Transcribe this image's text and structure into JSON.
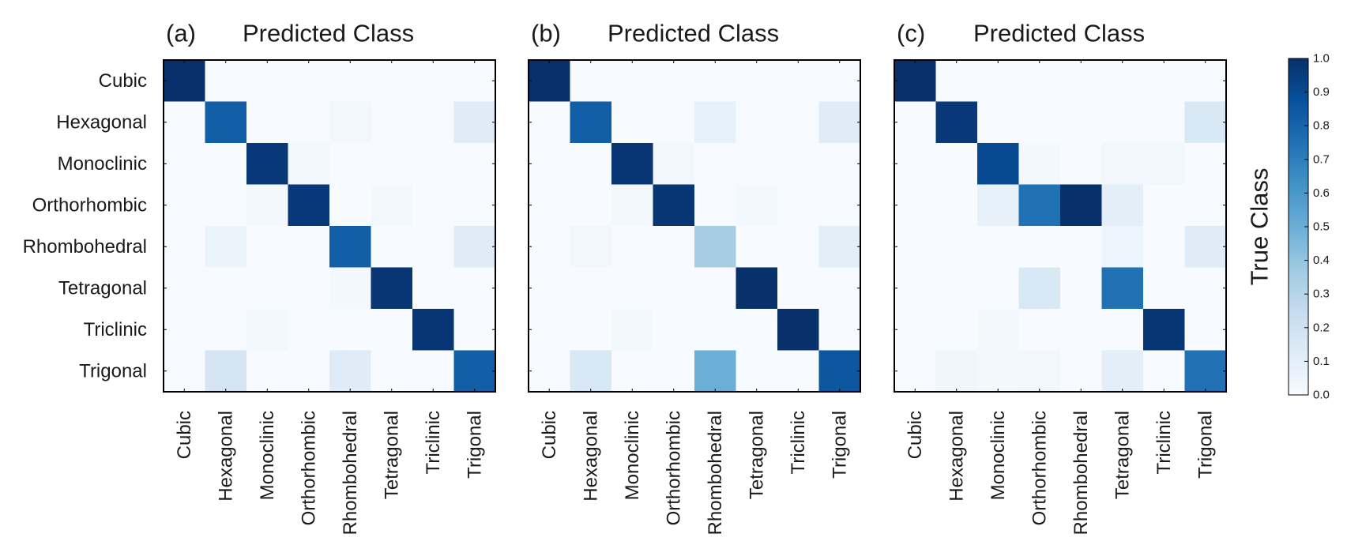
{
  "chart_data": [
    {
      "type": "heatmap",
      "panel_label": "(a)",
      "title": "Predicted Class",
      "ylabel": "",
      "rows": [
        "Cubic",
        "Hexagonal",
        "Monoclinic",
        "Orthorhombic",
        "Rhombohedral",
        "Tetragonal",
        "Triclinic",
        "Trigonal"
      ],
      "columns": [
        "Cubic",
        "Hexagonal",
        "Monoclinic",
        "Orthorhombic",
        "Rhombohedral",
        "Tetragonal",
        "Triclinic",
        "Trigonal"
      ],
      "values": [
        [
          1.0,
          0.0,
          0.0,
          0.0,
          0.0,
          0.0,
          0.0,
          0.0
        ],
        [
          0.0,
          0.82,
          0.0,
          0.0,
          0.03,
          0.0,
          0.0,
          0.12
        ],
        [
          0.0,
          0.0,
          0.97,
          0.03,
          0.0,
          0.0,
          0.0,
          0.0
        ],
        [
          0.0,
          0.0,
          0.02,
          0.97,
          0.0,
          0.02,
          0.0,
          0.0
        ],
        [
          0.0,
          0.06,
          0.0,
          0.0,
          0.82,
          0.0,
          0.0,
          0.12
        ],
        [
          0.0,
          0.0,
          0.0,
          0.0,
          0.02,
          0.98,
          0.0,
          0.0
        ],
        [
          0.0,
          0.0,
          0.02,
          0.0,
          0.0,
          0.0,
          0.98,
          0.0
        ],
        [
          0.0,
          0.17,
          0.0,
          0.0,
          0.12,
          0.0,
          0.0,
          0.82
        ]
      ]
    },
    {
      "type": "heatmap",
      "panel_label": "(b)",
      "title": "Predicted Class",
      "ylabel": "",
      "rows": [
        "Cubic",
        "Hexagonal",
        "Monoclinic",
        "Orthorhombic",
        "Rhombohedral",
        "Tetragonal",
        "Triclinic",
        "Trigonal"
      ],
      "columns": [
        "Cubic",
        "Hexagonal",
        "Monoclinic",
        "Orthorhombic",
        "Rhombohedral",
        "Tetragonal",
        "Triclinic",
        "Trigonal"
      ],
      "values": [
        [
          1.0,
          0.0,
          0.0,
          0.0,
          0.0,
          0.0,
          0.0,
          0.0
        ],
        [
          0.0,
          0.82,
          0.0,
          0.0,
          0.08,
          0.0,
          0.0,
          0.12
        ],
        [
          0.0,
          0.0,
          0.98,
          0.03,
          0.0,
          0.0,
          0.0,
          0.0
        ],
        [
          0.0,
          0.0,
          0.02,
          0.98,
          0.0,
          0.02,
          0.0,
          0.0
        ],
        [
          0.0,
          0.03,
          0.0,
          0.0,
          0.35,
          0.0,
          0.0,
          0.1
        ],
        [
          0.0,
          0.0,
          0.0,
          0.0,
          0.0,
          1.0,
          0.0,
          0.0
        ],
        [
          0.0,
          0.0,
          0.02,
          0.0,
          0.0,
          0.0,
          1.0,
          0.0
        ],
        [
          0.0,
          0.15,
          0.0,
          0.0,
          0.5,
          0.0,
          0.0,
          0.85
        ]
      ]
    },
    {
      "type": "heatmap",
      "panel_label": "(c)",
      "title": "Predicted Class",
      "ylabel": "True Class",
      "rows": [
        "Cubic",
        "Hexagonal",
        "Monoclinic",
        "Orthorhombic",
        "Rhombohedral",
        "Tetragonal",
        "Triclinic",
        "Trigonal"
      ],
      "columns": [
        "Cubic",
        "Hexagonal",
        "Monoclinic",
        "Orthorhombic",
        "Rhombohedral",
        "Tetragonal",
        "Triclinic",
        "Trigonal"
      ],
      "values": [
        [
          1.0,
          0.0,
          0.0,
          0.0,
          0.0,
          0.0,
          0.0,
          0.0
        ],
        [
          0.0,
          0.97,
          0.0,
          0.0,
          0.0,
          0.0,
          0.0,
          0.15
        ],
        [
          0.0,
          0.0,
          0.9,
          0.02,
          0.0,
          0.03,
          0.03,
          0.0
        ],
        [
          0.0,
          0.0,
          0.08,
          0.75,
          1.0,
          0.1,
          0.0,
          0.0
        ],
        [
          0.0,
          0.0,
          0.0,
          0.0,
          0.0,
          0.05,
          0.0,
          0.12
        ],
        [
          0.0,
          0.0,
          0.0,
          0.15,
          0.0,
          0.75,
          0.0,
          0.0
        ],
        [
          0.0,
          0.0,
          0.02,
          0.0,
          0.0,
          0.0,
          0.98,
          0.0
        ],
        [
          0.0,
          0.04,
          0.02,
          0.03,
          0.0,
          0.1,
          0.0,
          0.75
        ]
      ]
    }
  ],
  "colorbar": {
    "min": 0.0,
    "max": 1.0,
    "ticks": [
      "0.0",
      "0.1",
      "0.2",
      "0.3",
      "0.4",
      "0.5",
      "0.6",
      "0.7",
      "0.8",
      "0.9",
      "1.0"
    ],
    "colors": [
      "#f7fbff",
      "#deebf7",
      "#c6dbef",
      "#9ecae1",
      "#6baed6",
      "#4292c6",
      "#2171b5",
      "#08519c",
      "#08306b"
    ]
  }
}
